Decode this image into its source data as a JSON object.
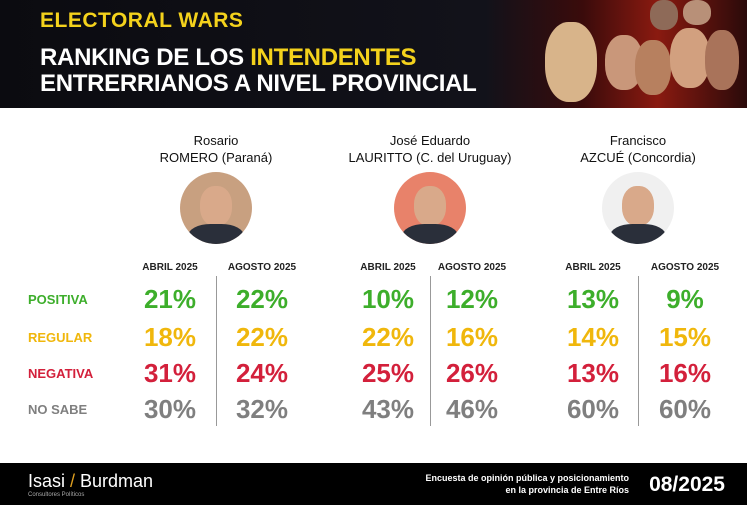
{
  "header": {
    "brand": "ELECTORAL WARS",
    "title_line1_a": "RANKING DE LOS ",
    "title_line1_b": "INTENDENTES",
    "title_line2": "ENTRERRIANOS A NIVEL PROVINCIAL"
  },
  "colors": {
    "positiva": "#3dae2b",
    "regular": "#f0b70c",
    "negativa": "#d3203b",
    "no_sabe": "#7f7f7f",
    "accent": "#f4d21c"
  },
  "chart_data": {
    "type": "table",
    "periods": [
      "ABRIL 2025",
      "AGOSTO 2025"
    ],
    "rows": [
      "POSITIVA",
      "REGULAR",
      "NEGATIVA",
      "NO SABE"
    ],
    "candidates": [
      {
        "line1": "Rosario",
        "line2": "ROMERO (Paraná)",
        "values": {
          "abril": [
            "21%",
            "18%",
            "31%",
            "30%"
          ],
          "agosto": [
            "22%",
            "22%",
            "24%",
            "32%"
          ]
        }
      },
      {
        "line1": "José Eduardo",
        "line2": "LAURITTO (C. del Uruguay)",
        "values": {
          "abril": [
            "10%",
            "22%",
            "25%",
            "43%"
          ],
          "agosto": [
            "12%",
            "16%",
            "26%",
            "46%"
          ]
        }
      },
      {
        "line1": "Francisco",
        "line2": "AZCUÉ (Concordia)",
        "values": {
          "abril": [
            "13%",
            "14%",
            "13%",
            "60%"
          ],
          "agosto": [
            "9%",
            "15%",
            "16%",
            "60%"
          ]
        }
      }
    ]
  },
  "footer": {
    "logo_a": "Isasi ",
    "logo_slash": "/",
    "logo_b": " Burdman",
    "logo_sub": "Consultores Políticos",
    "note_line1": "Encuesta de opinión pública y posicionamiento",
    "note_line2": "en la provincia de Entre Ríos",
    "date": "08/2025"
  }
}
